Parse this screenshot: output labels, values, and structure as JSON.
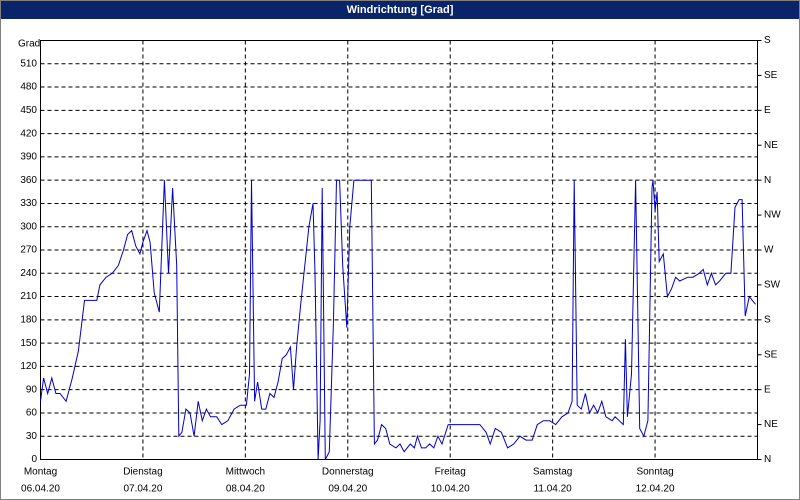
{
  "chart_data": {
    "type": "line",
    "title": "Windrichtung [Grad]",
    "ylabel": "Grad",
    "color": "#0000cc",
    "grid": true,
    "xlim": [
      0,
      7
    ],
    "xticks": [
      {
        "value": 0,
        "label": "Montag",
        "date": "06.04.20"
      },
      {
        "value": 1,
        "label": "Dienstag",
        "date": "07.04.20"
      },
      {
        "value": 2,
        "label": "Mittwoch",
        "date": "08.04.20"
      },
      {
        "value": 3,
        "label": "Donnerstag",
        "date": "09.04.20"
      },
      {
        "value": 4,
        "label": "Freitag",
        "date": "10.04.20"
      },
      {
        "value": 5,
        "label": "Samstag",
        "date": "11.04.20"
      },
      {
        "value": 6,
        "label": "Sonntag",
        "date": "12.04.20"
      }
    ],
    "ylim": [
      0,
      540
    ],
    "yticks": [
      0,
      30,
      60,
      90,
      120,
      150,
      180,
      210,
      240,
      270,
      300,
      330,
      360,
      390,
      420,
      450,
      480,
      510
    ],
    "y2lim": [
      0,
      540
    ],
    "y2ticks": [
      {
        "value": 0,
        "label": "N"
      },
      {
        "value": 45,
        "label": "NE"
      },
      {
        "value": 90,
        "label": "E"
      },
      {
        "value": 135,
        "label": "SE"
      },
      {
        "value": 180,
        "label": "S"
      },
      {
        "value": 225,
        "label": "SW"
      },
      {
        "value": 270,
        "label": "W"
      },
      {
        "value": 315,
        "label": "NW"
      },
      {
        "value": 360,
        "label": "N"
      },
      {
        "value": 405,
        "label": "NE"
      },
      {
        "value": 450,
        "label": "E"
      },
      {
        "value": 495,
        "label": "SE"
      },
      {
        "value": 540,
        "label": "S"
      }
    ],
    "x": [
      0,
      0.03,
      0.07,
      0.11,
      0.15,
      0.19,
      0.25,
      0.31,
      0.37,
      0.43,
      0.49,
      0.55,
      0.58,
      0.64,
      0.7,
      0.76,
      0.81,
      0.85,
      0.89,
      0.93,
      0.97,
      1.0,
      1.04,
      1.07,
      1.11,
      1.16,
      1.21,
      1.25,
      1.29,
      1.33,
      1.35,
      1.38,
      1.42,
      1.46,
      1.5,
      1.54,
      1.58,
      1.62,
      1.66,
      1.72,
      1.77,
      1.83,
      1.89,
      1.95,
      2.01,
      2.04,
      2.06,
      2.09,
      2.12,
      2.16,
      2.2,
      2.24,
      2.28,
      2.32,
      2.36,
      2.4,
      2.44,
      2.47,
      2.5,
      2.54,
      2.58,
      2.62,
      2.66,
      2.68,
      2.71,
      2.73,
      2.75,
      2.78,
      2.82,
      2.86,
      2.89,
      2.92,
      2.95,
      2.99,
      3.02,
      3.06,
      3.12,
      3.18,
      3.23,
      3.26,
      3.29,
      3.33,
      3.37,
      3.41,
      3.47,
      3.51,
      3.55,
      3.61,
      3.65,
      3.68,
      3.72,
      3.76,
      3.8,
      3.84,
      3.88,
      3.92,
      3.98,
      4.04,
      4.09,
      4.19,
      4.29,
      4.35,
      4.39,
      4.44,
      4.5,
      4.56,
      4.62,
      4.68,
      4.74,
      4.8,
      4.85,
      4.91,
      4.97,
      5.03,
      5.09,
      5.15,
      5.19,
      5.21,
      5.24,
      5.28,
      5.32,
      5.36,
      5.4,
      5.44,
      5.48,
      5.52,
      5.58,
      5.61,
      5.65,
      5.69,
      5.71,
      5.73,
      5.77,
      5.81,
      5.85,
      5.89,
      5.93,
      5.97,
      5.98,
      6.0,
      6.02,
      6.04,
      6.08,
      6.12,
      6.16,
      6.2,
      6.24,
      6.32,
      6.37,
      6.43,
      6.47,
      6.51,
      6.55,
      6.59,
      6.63,
      6.69,
      6.74,
      6.78,
      6.82,
      6.85,
      6.88,
      6.92,
      6.98
    ],
    "values": [
      75,
      105,
      85,
      105,
      85,
      85,
      75,
      105,
      140,
      205,
      205,
      205,
      225,
      235,
      240,
      250,
      270,
      290,
      295,
      275,
      265,
      280,
      295,
      280,
      215,
      190,
      360,
      240,
      350,
      250,
      30,
      35,
      65,
      60,
      30,
      75,
      50,
      65,
      55,
      55,
      45,
      50,
      65,
      70,
      70,
      110,
      360,
      75,
      100,
      65,
      65,
      85,
      80,
      100,
      130,
      135,
      145,
      90,
      145,
      200,
      250,
      300,
      330,
      240,
      0,
      50,
      350,
      0,
      10,
      175,
      360,
      360,
      250,
      170,
      300,
      360,
      360,
      360,
      360,
      20,
      25,
      45,
      40,
      20,
      15,
      20,
      10,
      20,
      15,
      30,
      15,
      15,
      20,
      15,
      30,
      20,
      45,
      45,
      45,
      45,
      45,
      35,
      20,
      40,
      35,
      15,
      20,
      30,
      25,
      25,
      45,
      50,
      50,
      45,
      55,
      60,
      75,
      360,
      70,
      65,
      85,
      60,
      70,
      60,
      75,
      55,
      50,
      55,
      50,
      45,
      155,
      55,
      110,
      360,
      40,
      30,
      50,
      350,
      360,
      320,
      345,
      255,
      265,
      210,
      220,
      235,
      230,
      235,
      235,
      240,
      245,
      225,
      240,
      225,
      230,
      240,
      240,
      325,
      335,
      335,
      185,
      210,
      200
    ]
  }
}
